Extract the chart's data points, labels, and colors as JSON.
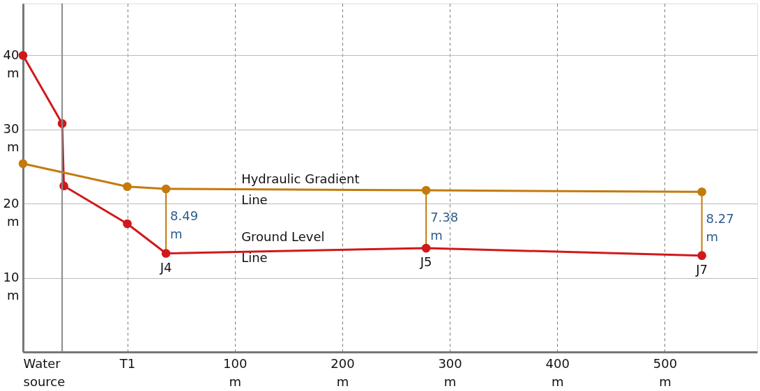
{
  "chart_data": {
    "type": "line",
    "series": [
      {
        "name": "Ground Level Line",
        "color": "#d0191b",
        "x": [
          -97,
          -60.6,
          -59,
          0,
          36,
          278,
          534.5
        ],
        "values": [
          40,
          30.8,
          22.4,
          17.3,
          13.3,
          14.0,
          13.0
        ]
      },
      {
        "name": "Hydraulic Gradient Line",
        "color": "#c47a0c",
        "x": [
          -97,
          0,
          36,
          278,
          534.5
        ],
        "values": [
          25.4,
          22.3,
          22.0,
          21.8,
          21.6
        ]
      }
    ],
    "xlim": [
      -97,
      586
    ],
    "ylim": [
      0,
      47
    ],
    "xticks": [
      {
        "value": -97,
        "label": "Water source"
      },
      {
        "value": 0,
        "label": "T1"
      },
      {
        "value": 100,
        "label": "100 m"
      },
      {
        "value": 200,
        "label": "200 m"
      },
      {
        "value": 300,
        "label": "300 m"
      },
      {
        "value": 400,
        "label": "400 m"
      },
      {
        "value": 500,
        "label": "500 m"
      }
    ],
    "yticks": [
      {
        "value": 10,
        "label": "10 m"
      },
      {
        "value": 20,
        "label": "20 m"
      },
      {
        "value": 30,
        "label": "30 m"
      },
      {
        "value": 40,
        "label": "40 m"
      }
    ],
    "ref_lines": [
      {
        "axis": "x",
        "value": -60.6,
        "label": null,
        "color": "#888888"
      }
    ],
    "annotations": [
      {
        "text": "8.49 m",
        "x": 36,
        "y": 22.0
      },
      {
        "text": "7.38 m",
        "x": 278,
        "y": 21.8
      },
      {
        "text": "8.27 m",
        "x": 534.5,
        "y": 21.6
      },
      {
        "text": "J4",
        "x": 36,
        "y": 13.3
      },
      {
        "text": "J5",
        "x": 278,
        "y": 14.0
      },
      {
        "text": "J7",
        "x": 534.5,
        "y": 13.0
      }
    ],
    "grid": true,
    "marker": "circle",
    "line_style": "solid"
  }
}
